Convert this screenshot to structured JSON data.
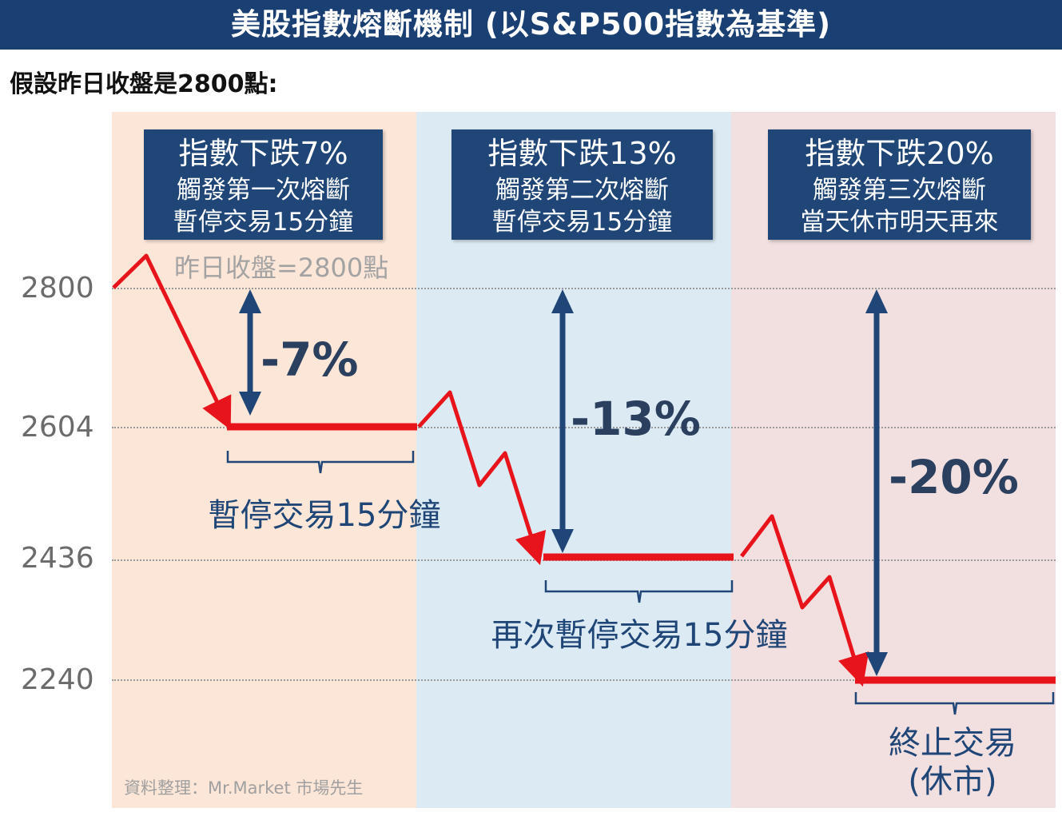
{
  "header": {
    "title": "美股指數熔斷機制 (以S&P500指數為基準)",
    "subtitle": "假設昨日收盤是2800點:"
  },
  "y_axis": {
    "ticks": [
      "2800",
      "2604",
      "2436",
      "2240"
    ]
  },
  "stages": [
    {
      "title": "指數下跌7%",
      "line2": "觸發第一次熔斷",
      "line3": "暫停交易15分鐘",
      "drop_label": "-7%",
      "level": 2604
    },
    {
      "title": "指數下跌13%",
      "line2": "觸發第二次熔斷",
      "line3": "暫停交易15分鐘",
      "drop_label": "-13%",
      "level": 2436
    },
    {
      "title": "指數下跌20%",
      "line2": "觸發第三次熔斷",
      "line3": "當天休市明天再來",
      "drop_label": "-20%",
      "level": 2240
    }
  ],
  "annotations": {
    "prev_close": "昨日收盤=2800點",
    "pause_1": "暫停交易15分鐘",
    "pause_2": "再次暫停交易15分鐘",
    "halt_line1": "終止交易",
    "halt_line2": "(休市)"
  },
  "source": "資料整理：Mr.Market 市場先生",
  "colors": {
    "banner": "#1a3f72",
    "box": "#1f4677",
    "price_line": "#e8141c",
    "drop_arrow": "#1f4677",
    "zone_1": "#fce6d8",
    "zone_2": "#dcebf3",
    "zone_3": "#f2dfe0"
  }
}
